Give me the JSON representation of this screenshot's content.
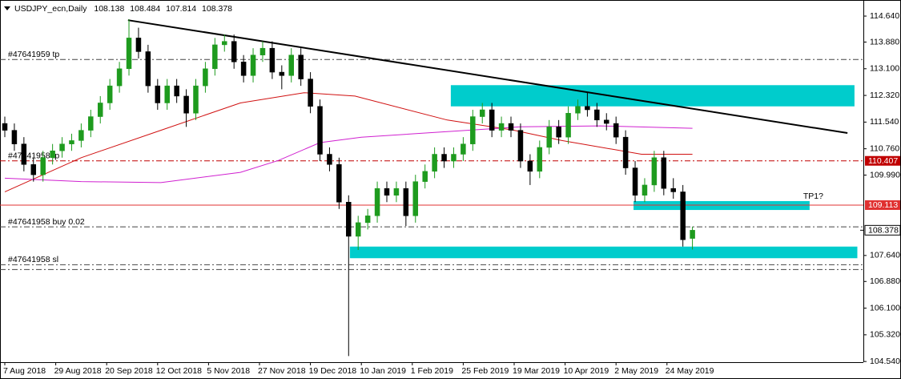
{
  "chart_data": {
    "type": "candlestick",
    "symbol": "USDJPY_ecn,Daily",
    "bull_color": "#1e9b1e",
    "bear_color": "#000000",
    "xlim": [
      -1.51,
      269.69
    ],
    "ylim": [
      104.52,
      115.11
    ],
    "xticks": [
      {
        "value": 0,
        "label": "7 Aug 2018"
      },
      {
        "value": 16,
        "label": "29 Aug 2018"
      },
      {
        "value": 32,
        "label": "20 Sep 2018"
      },
      {
        "value": 48,
        "label": "12 Oct 2018"
      },
      {
        "value": 64,
        "label": "5 Nov 2018"
      },
      {
        "value": 80,
        "label": "27 Nov 2018"
      },
      {
        "value": 96,
        "label": "19 Dec 2018"
      },
      {
        "value": 112,
        "label": "10 Jan 2019"
      },
      {
        "value": 128,
        "label": "1 Feb 2019"
      },
      {
        "value": 144,
        "label": "25 Feb 2019"
      },
      {
        "value": 160,
        "label": "19 Mar 2019"
      },
      {
        "value": 176,
        "label": "10 Apr 2019"
      },
      {
        "value": 192,
        "label": "2 May 2019"
      },
      {
        "value": 208,
        "label": "24 May 2019"
      }
    ],
    "yticks": [
      {
        "value": 114.64,
        "label": "114.640"
      },
      {
        "value": 113.88,
        "label": "113.880"
      },
      {
        "value": 113.1,
        "label": "113.100"
      },
      {
        "value": 112.32,
        "label": "112.320"
      },
      {
        "value": 111.54,
        "label": "111.540"
      },
      {
        "value": 110.76,
        "label": "110.760"
      },
      {
        "value": 109.99,
        "label": "109.990"
      },
      {
        "value": 107.64,
        "label": "107.640"
      },
      {
        "value": 106.88,
        "label": "106.880"
      },
      {
        "value": 106.1,
        "label": "106.100"
      },
      {
        "value": 105.32,
        "label": "105.320"
      },
      {
        "value": 104.54,
        "label": "104.540"
      }
    ],
    "candles": {
      "x": [
        0,
        3,
        6,
        9,
        12,
        15,
        18,
        21,
        24,
        27,
        30,
        33,
        36,
        39,
        42,
        45,
        48,
        51,
        54,
        57,
        60,
        63,
        66,
        69,
        72,
        75,
        78,
        81,
        84,
        87,
        90,
        93,
        96,
        99,
        102,
        105,
        108,
        111,
        114,
        117,
        120,
        123,
        126,
        129,
        132,
        135,
        138,
        141,
        144,
        147,
        150,
        153,
        156,
        159,
        162,
        165,
        168,
        171,
        174,
        177,
        180,
        183,
        186,
        189,
        192,
        195,
        198,
        201,
        204,
        207,
        210,
        213,
        216
      ],
      "open": [
        111.5,
        111.3,
        110.9,
        110.3,
        110.0,
        110.5,
        110.7,
        110.9,
        111.0,
        111.3,
        111.7,
        112.1,
        112.6,
        113.1,
        114.0,
        113.6,
        112.6,
        112.1,
        112.6,
        112.3,
        111.8,
        112.6,
        113.1,
        113.8,
        113.9,
        113.3,
        112.9,
        113.5,
        113.7,
        113.0,
        112.9,
        113.5,
        112.8,
        112.0,
        110.6,
        110.3,
        109.2,
        108.2,
        108.6,
        108.8,
        109.6,
        109.4,
        109.6,
        108.8,
        109.8,
        110.1,
        110.6,
        110.4,
        110.6,
        110.9,
        111.7,
        111.9,
        111.3,
        111.5,
        111.3,
        110.4,
        110.1,
        110.8,
        111.4,
        111.1,
        111.8,
        112.0,
        111.9,
        111.6,
        111.5,
        111.1,
        110.2,
        109.4,
        109.7,
        110.5,
        109.6,
        109.5,
        108.138
      ],
      "high": [
        111.7,
        111.5,
        111.1,
        110.5,
        110.7,
        110.9,
        111.1,
        111.2,
        111.5,
        111.9,
        112.3,
        112.8,
        113.3,
        114.55,
        114.3,
        113.8,
        112.8,
        112.8,
        112.8,
        112.5,
        112.8,
        113.3,
        114.0,
        114.1,
        114.1,
        113.5,
        113.7,
        113.9,
        113.9,
        113.2,
        113.7,
        113.7,
        113.0,
        112.2,
        110.8,
        110.5,
        109.4,
        108.8,
        109.0,
        109.8,
        109.8,
        109.8,
        109.8,
        110.0,
        110.3,
        110.8,
        110.8,
        110.8,
        111.1,
        111.9,
        112.1,
        112.1,
        111.7,
        111.7,
        111.5,
        110.6,
        111.0,
        111.6,
        111.6,
        112.0,
        112.2,
        112.4,
        112.1,
        111.8,
        111.7,
        111.3,
        110.4,
        109.9,
        110.7,
        110.7,
        109.9,
        109.7,
        108.484
      ],
      "low": [
        111.1,
        110.7,
        110.1,
        109.8,
        109.8,
        110.3,
        110.5,
        110.7,
        110.8,
        111.1,
        111.5,
        111.9,
        112.4,
        112.9,
        113.4,
        112.4,
        111.9,
        111.9,
        112.1,
        111.4,
        111.6,
        112.4,
        112.9,
        113.6,
        113.1,
        112.7,
        112.7,
        113.3,
        112.8,
        112.5,
        112.7,
        112.6,
        111.8,
        110.4,
        110.1,
        109.0,
        104.7,
        107.8,
        108.4,
        108.6,
        109.2,
        109.2,
        108.5,
        108.6,
        109.6,
        109.9,
        110.2,
        110.2,
        110.4,
        110.7,
        111.5,
        111.1,
        111.1,
        111.1,
        110.2,
        109.7,
        109.9,
        110.6,
        110.9,
        110.9,
        111.6,
        111.7,
        111.4,
        111.3,
        110.9,
        110.0,
        109.2,
        109.2,
        109.5,
        109.4,
        109.3,
        107.9,
        107.814
      ],
      "close": [
        111.3,
        110.9,
        110.3,
        110.0,
        110.5,
        110.7,
        110.9,
        111.0,
        111.3,
        111.7,
        112.1,
        112.6,
        113.1,
        114.0,
        113.6,
        112.6,
        112.1,
        112.6,
        112.3,
        111.8,
        112.6,
        113.1,
        113.8,
        113.9,
        113.3,
        112.9,
        113.5,
        113.7,
        113.0,
        112.9,
        113.5,
        112.8,
        112.0,
        110.6,
        110.3,
        109.2,
        108.2,
        108.6,
        108.8,
        109.6,
        109.4,
        109.6,
        108.8,
        109.8,
        110.1,
        110.6,
        110.4,
        110.6,
        110.9,
        111.7,
        111.9,
        111.3,
        111.5,
        111.3,
        110.4,
        110.1,
        110.8,
        111.4,
        111.1,
        111.8,
        112.0,
        111.9,
        111.6,
        111.5,
        111.1,
        110.2,
        109.4,
        109.7,
        110.5,
        109.6,
        109.5,
        108.1,
        108.378
      ]
    },
    "indicators": [
      {
        "color": "#d01010",
        "x": [
          0,
          24,
          49,
          74,
          94,
          110,
          139,
          160,
          175,
          200,
          216
        ],
        "values": [
          109.5,
          110.5,
          111.3,
          112.1,
          112.4,
          112.3,
          111.6,
          111.3,
          111.0,
          110.6,
          110.6
        ]
      },
      {
        "color": "#d020d0",
        "x": [
          0,
          24,
          49,
          74,
          86,
          99,
          112,
          137,
          162,
          187,
          216
        ],
        "values": [
          109.9,
          109.8,
          109.77,
          110.07,
          110.42,
          110.94,
          111.1,
          111.25,
          111.4,
          111.43,
          111.36
        ]
      }
    ],
    "trendline": {
      "color": "#000000",
      "x": [
        38.7,
        264.7
      ],
      "values": [
        114.52,
        111.22
      ]
    },
    "zones": [
      {
        "color": "#00cccc",
        "x": [
          140.1,
          266.9
        ],
        "y": [
          112.62,
          112.0
        ]
      },
      {
        "color": "#00cccc",
        "x": [
          197.5,
          252.8
        ],
        "y": [
          109.23,
          108.97
        ],
        "label": "TP1?"
      },
      {
        "color": "#00cccc",
        "x": [
          108.4,
          267.8
        ],
        "y": [
          107.9,
          107.56
        ]
      }
    ],
    "levels": [
      {
        "label": "#47641959 tp",
        "value": 113.37,
        "color": "#444444",
        "style": "dashdot"
      },
      {
        "label": "#47641958 tp",
        "value": 110.407,
        "color": "#c00000",
        "style": "dashdot",
        "price_box": true
      },
      {
        "value": 109.113,
        "color": "#e03030",
        "style": "solid",
        "price_box": true
      },
      {
        "label": "#47641958 buy 0.02",
        "value": 108.476,
        "color": "#444444",
        "style": "dashdot"
      },
      {
        "label": "#47641958 sl",
        "value": 107.37,
        "color": "#444444",
        "style": "dashdot"
      },
      {
        "value": 107.23,
        "color": "#444444",
        "style": "dashdot"
      }
    ]
  }
}
